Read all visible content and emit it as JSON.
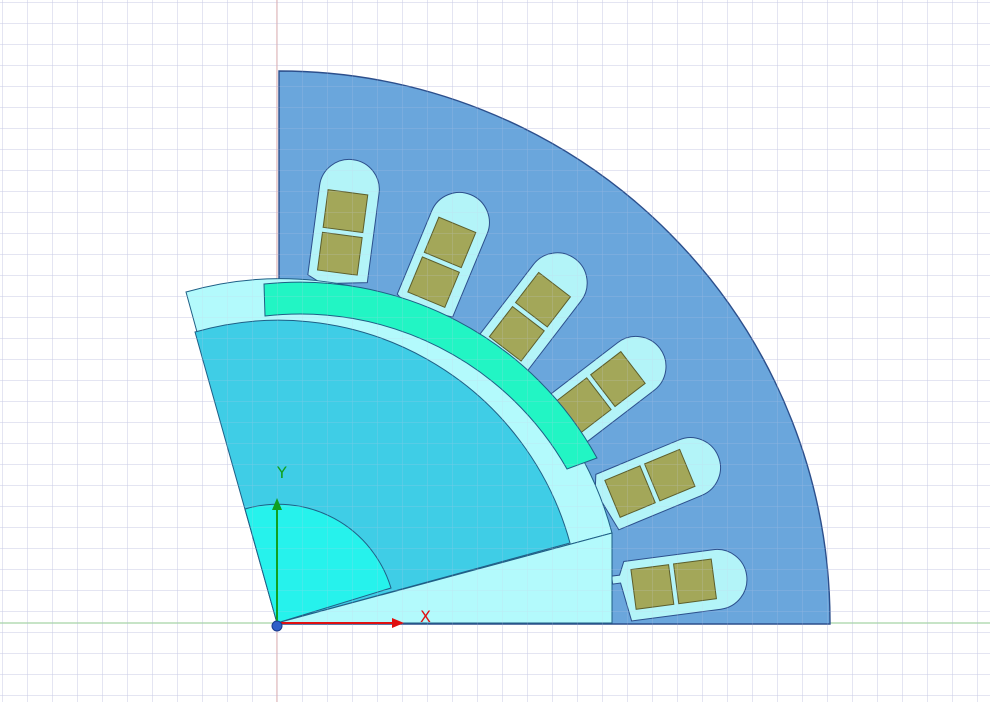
{
  "axes": {
    "x_label": "X",
    "y_label": "Y",
    "x_color": "#e01010",
    "y_color": "#10a020"
  },
  "colors": {
    "background": "#ffffff",
    "grid": "#c9cbe6",
    "stator_core": "#6aa6dc",
    "stator_outline": "#2c4f8c",
    "slot": "#b3f4f8",
    "coil": "#a3a759",
    "coil_outline": "#5c5e2c",
    "airgap": "#b3fafc",
    "rotor_core": "#3fcde6",
    "magnet": "#22f5c4",
    "shaft": "#26f2ec",
    "rotor_outline": "#1f5f86"
  },
  "stator": {
    "slot_count": 6,
    "coils_per_slot": 2
  },
  "icons": {
    "origin": "coordinate-origin-icon"
  }
}
